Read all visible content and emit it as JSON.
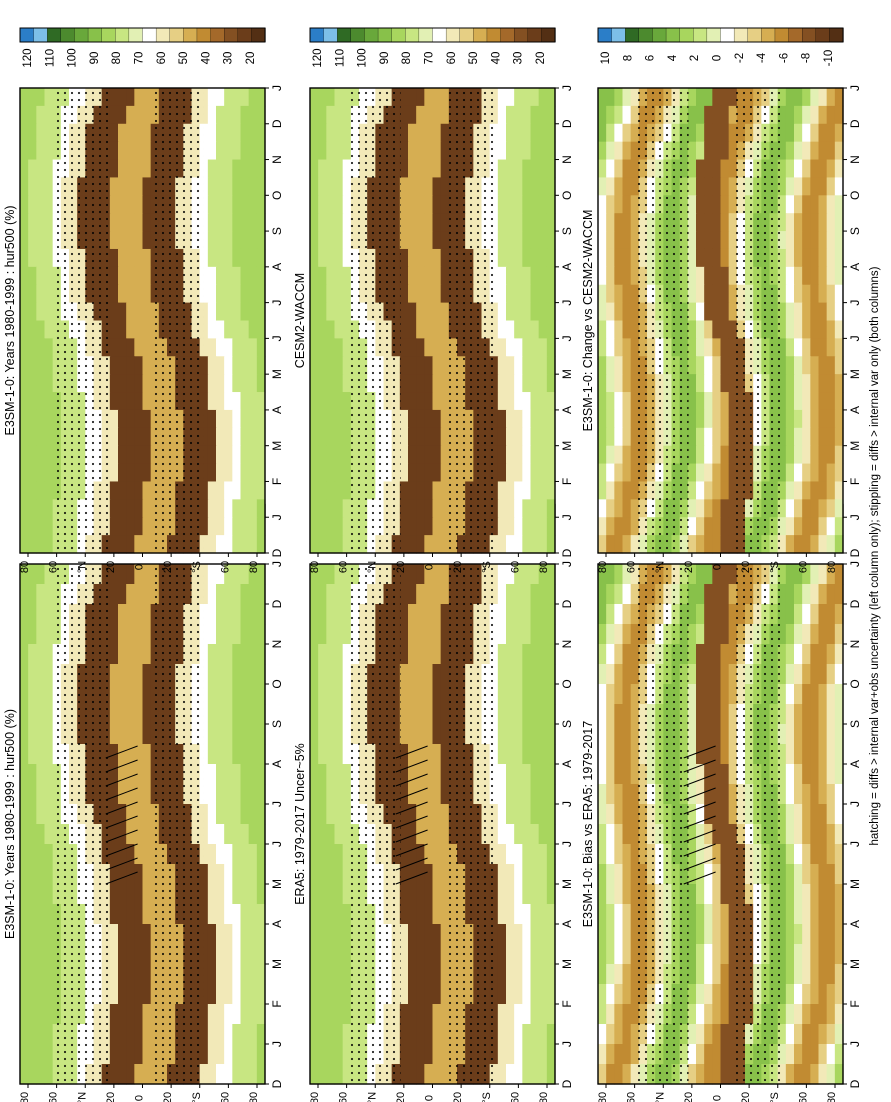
{
  "footnote": "hatching = diffs > internal var+obs uncertainty (left column only); stippling = diffs > internal var only (both columns)",
  "chart_data": [
    {
      "type": "heatmap",
      "title": "E3SM-1-0: Years 1980-1999 : hur500 (%)",
      "months": [
        "D",
        "J",
        "F",
        "M",
        "A",
        "M",
        "J",
        "J",
        "A",
        "S",
        "O",
        "N",
        "D",
        "J"
      ],
      "lat_ticks": [
        "80",
        "60",
        "°N",
        "20",
        "0",
        "20",
        "°S",
        "60",
        "80"
      ],
      "colorbar": {
        "labels": [
          "120",
          "110",
          "100",
          "90",
          "80",
          "70",
          "60",
          "50",
          "40",
          "30",
          "20"
        ],
        "colors": [
          "#2b7ec8",
          "#7dbfe8",
          "#2f6a24",
          "#4c8a2e",
          "#69a83b",
          "#88c14a",
          "#a8d65e",
          "#c8e682",
          "#e2f0b4",
          "#ffffff",
          "#f2e9b8",
          "#e6cf84",
          "#d6ae52",
          "#c18b32",
          "#a4692a",
          "#845022",
          "#6b3d1a",
          "#532f14"
        ]
      },
      "hatching": true,
      "stippling": true
    },
    {
      "type": "heatmap",
      "title": "E3SM-1-0: Years 1980-1999 : hur500 (%)",
      "months": [
        "D",
        "J",
        "F",
        "M",
        "A",
        "M",
        "J",
        "J",
        "A",
        "S",
        "O",
        "N",
        "D",
        "J"
      ],
      "lat_ticks": [
        "80",
        "60",
        "°N",
        "20",
        "0",
        "20",
        "°S",
        "60",
        "80"
      ],
      "colorbar": {
        "labels": [
          "120",
          "110",
          "100",
          "90",
          "80",
          "70",
          "60",
          "50",
          "40",
          "30",
          "20"
        ],
        "colors": [
          "#2b7ec8",
          "#7dbfe8",
          "#2f6a24",
          "#4c8a2e",
          "#69a83b",
          "#88c14a",
          "#a8d65e",
          "#c8e682",
          "#e2f0b4",
          "#ffffff",
          "#f2e9b8",
          "#e6cf84",
          "#d6ae52",
          "#c18b32",
          "#a4692a",
          "#845022",
          "#6b3d1a",
          "#532f14"
        ]
      },
      "hatching": false,
      "stippling": true
    },
    {
      "type": "heatmap",
      "title": "ERA5: 1979-2017 Uncer~5%",
      "months": [
        "D",
        "J",
        "F",
        "M",
        "A",
        "M",
        "J",
        "J",
        "A",
        "S",
        "O",
        "N",
        "D",
        "J"
      ],
      "lat_ticks": [
        "80",
        "60",
        "°N",
        "20",
        "0",
        "20",
        "°S",
        "60",
        "80"
      ],
      "colorbar": {
        "labels": [
          "120",
          "110",
          "100",
          "90",
          "80",
          "70",
          "60",
          "50",
          "40",
          "30",
          "20"
        ],
        "colors": [
          "#2b7ec8",
          "#7dbfe8",
          "#2f6a24",
          "#4c8a2e",
          "#69a83b",
          "#88c14a",
          "#a8d65e",
          "#c8e682",
          "#e2f0b4",
          "#ffffff",
          "#f2e9b8",
          "#e6cf84",
          "#d6ae52",
          "#c18b32",
          "#a4692a",
          "#845022",
          "#6b3d1a",
          "#532f14"
        ]
      },
      "hatching": true,
      "stippling": true
    },
    {
      "type": "heatmap",
      "title": "CESM2-WACCM",
      "months": [
        "D",
        "J",
        "F",
        "M",
        "A",
        "M",
        "J",
        "J",
        "A",
        "S",
        "O",
        "N",
        "D",
        "J"
      ],
      "lat_ticks": [
        "80",
        "60",
        "°N",
        "20",
        "0",
        "20",
        "°S",
        "60",
        "80"
      ],
      "colorbar": {
        "labels": [
          "120",
          "110",
          "100",
          "90",
          "80",
          "70",
          "60",
          "50",
          "40",
          "30",
          "20"
        ],
        "colors": [
          "#2b7ec8",
          "#7dbfe8",
          "#2f6a24",
          "#4c8a2e",
          "#69a83b",
          "#88c14a",
          "#a8d65e",
          "#c8e682",
          "#e2f0b4",
          "#ffffff",
          "#f2e9b8",
          "#e6cf84",
          "#d6ae52",
          "#c18b32",
          "#a4692a",
          "#845022",
          "#6b3d1a",
          "#532f14"
        ]
      },
      "hatching": false,
      "stippling": true
    },
    {
      "type": "heatmap",
      "title": "E3SM-1-0: Bias vs ERA5: 1979-2017",
      "months": [
        "D",
        "J",
        "F",
        "M",
        "A",
        "M",
        "J",
        "J",
        "A",
        "S",
        "O",
        "N",
        "D",
        "J"
      ],
      "lat_ticks": [
        "80",
        "60",
        "°N",
        "20",
        "0",
        "20",
        "°S",
        "60",
        "80"
      ],
      "colorbar": {
        "labels": [
          "10",
          "8",
          "6",
          "4",
          "2",
          "0",
          "-2",
          "-4",
          "-6",
          "-8",
          "-10"
        ],
        "colors": [
          "#2b7ec8",
          "#7dbfe8",
          "#2f6a24",
          "#4c8a2e",
          "#69a83b",
          "#88c14a",
          "#a8d65e",
          "#c8e682",
          "#e2f0b4",
          "#ffffff",
          "#f2e9b8",
          "#e6cf84",
          "#d6ae52",
          "#c18b32",
          "#a4692a",
          "#845022",
          "#6b3d1a",
          "#532f14"
        ]
      },
      "hatching": true,
      "stippling": true
    },
    {
      "type": "heatmap",
      "title": "E3SM-1-0: Change vs CESM2-WACCM",
      "months": [
        "D",
        "J",
        "F",
        "M",
        "A",
        "M",
        "J",
        "J",
        "A",
        "S",
        "O",
        "N",
        "D",
        "J"
      ],
      "lat_ticks": [
        "80",
        "60",
        "°N",
        "20",
        "0",
        "20",
        "°S",
        "60",
        "80"
      ],
      "colorbar": {
        "labels": [
          "10",
          "8",
          "6",
          "4",
          "2",
          "0",
          "-2",
          "-4",
          "-6",
          "-8",
          "-10"
        ],
        "colors": [
          "#2b7ec8",
          "#7dbfe8",
          "#2f6a24",
          "#4c8a2e",
          "#69a83b",
          "#88c14a",
          "#a8d65e",
          "#c8e682",
          "#e2f0b4",
          "#ffffff",
          "#f2e9b8",
          "#e6cf84",
          "#d6ae52",
          "#c18b32",
          "#a4692a",
          "#845022",
          "#6b3d1a",
          "#532f14"
        ]
      },
      "hatching": false,
      "stippling": true
    }
  ]
}
